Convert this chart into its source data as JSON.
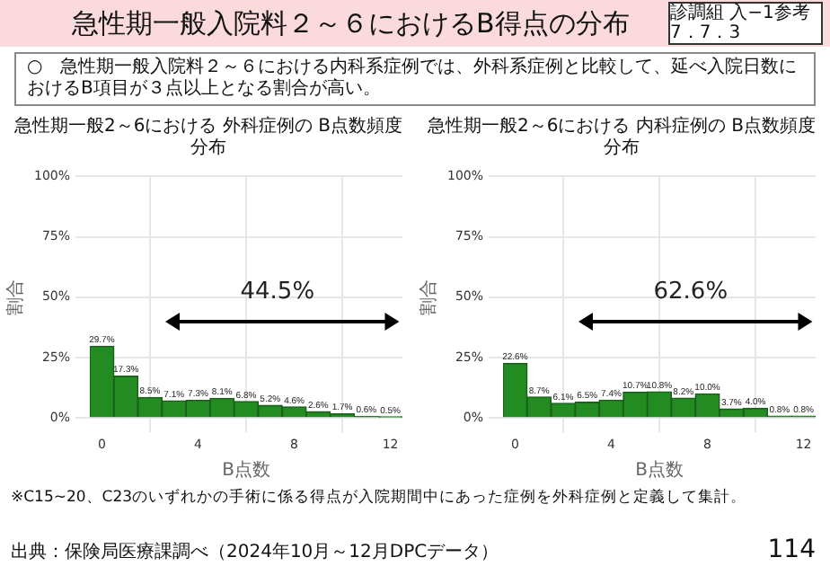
{
  "chart_data": [
    {
      "type": "histogram",
      "title": "急性期一般2～6における 外科症例の B点数頻度分布",
      "xlabel": "B点数",
      "ylabel": "割合",
      "bins": [
        -0.5,
        0.5,
        1.5,
        2.5,
        3.5,
        4.5,
        5.5,
        6.5,
        7.5,
        8.5,
        9.5,
        10.5,
        11.5,
        12.5
      ],
      "values": [
        29.7,
        17.3,
        8.5,
        7.1,
        7.3,
        8.1,
        6.8,
        5.2,
        4.6,
        2.6,
        1.7,
        0.6,
        0.5
      ],
      "value_labels": [
        "29.7%",
        "17.3%",
        "8.5%",
        "7.1%",
        "7.3%",
        "8.1%",
        "6.8%",
        "5.2%",
        "4.6%",
        "2.6%",
        "1.7%",
        "0.6%",
        "0.5%"
      ],
      "color": "#228b22",
      "xlim": [
        -0.5,
        12.5
      ],
      "xticks": [
        0,
        4,
        8,
        12
      ],
      "ylim": [
        0,
        100
      ],
      "yticks": [
        {
          "value": 0,
          "label": "0%"
        },
        {
          "value": 25,
          "label": "25%"
        },
        {
          "value": 50,
          "label": "50%"
        },
        {
          "value": 75,
          "label": "75%"
        },
        {
          "value": 100,
          "label": "100%"
        }
      ],
      "grid": true,
      "legend": false,
      "annotations": [
        "急性期一般入院料２～６におけるB得点の分布",
        "診調組 入−1参考 7．7．3",
        "○　急性期一般入院料２～６における内科系症例では、外科系症例と比較して、延べ入院日数におけるB項目が３点以上となる割合が高い。",
        "※C15~20、C23のいずれかの手術に係る得点が入院期間中にあった症例を外科症例と定義して集計。",
        "出典：保険局医療課調べ（2024年10月～12月DPCデータ）",
        "114",
        "44.5%"
      ]
    },
    {
      "type": "histogram",
      "title": "急性期一般2～6における 内科症例の B点数頻度分布",
      "xlabel": "B点数",
      "ylabel": "割合",
      "bins": [
        -0.5,
        0.5,
        1.5,
        2.5,
        3.5,
        4.5,
        5.5,
        6.5,
        7.5,
        8.5,
        9.5,
        10.5,
        11.5,
        12.5
      ],
      "values": [
        22.6,
        8.7,
        6.1,
        6.5,
        7.4,
        10.7,
        10.8,
        8.2,
        10.0,
        3.7,
        4.0,
        0.8,
        0.8
      ],
      "value_labels": [
        "22.6%",
        "8.7%",
        "6.1%",
        "6.5%",
        "7.4%",
        "10.7%",
        "10.8%",
        "8.2%",
        "10.0%",
        "3.7%",
        "4.0%",
        "0.8%",
        "0.8%"
      ],
      "color": "#228b22",
      "xlim": [
        -0.5,
        12.5
      ],
      "xticks": [
        0,
        4,
        8,
        12
      ],
      "ylim": [
        0,
        100
      ],
      "yticks": [
        {
          "value": 0,
          "label": "0%"
        },
        {
          "value": 25,
          "label": "25%"
        },
        {
          "value": 50,
          "label": "50%"
        },
        {
          "value": 75,
          "label": "75%"
        },
        {
          "value": 100,
          "label": "100%"
        }
      ],
      "grid": true,
      "legend": false,
      "annotations": [
        "62.6%"
      ]
    }
  ]
}
